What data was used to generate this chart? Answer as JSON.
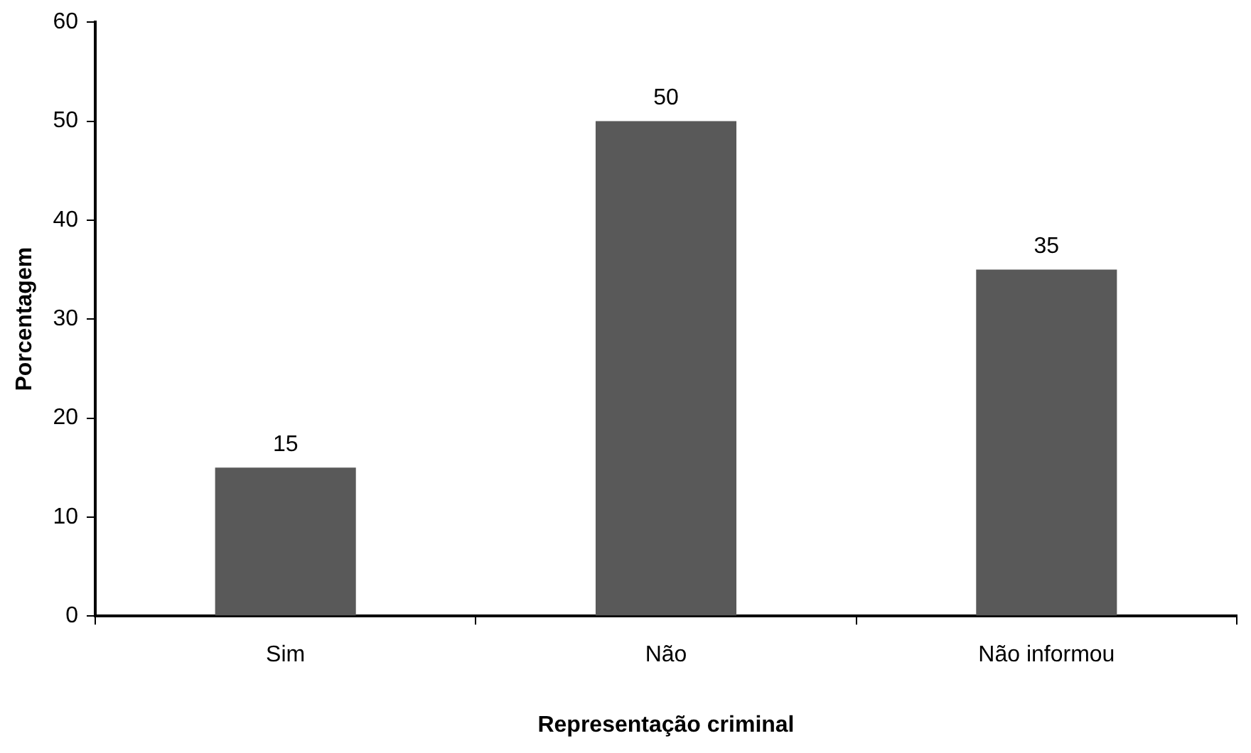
{
  "chart_data": {
    "type": "bar",
    "xlabel": "Representação criminal",
    "ylabel": "Porcentagem",
    "categories": [
      "Sim",
      "Não",
      "Não informou"
    ],
    "values": [
      15,
      50,
      35
    ],
    "color": "#595959",
    "ylim": [
      0,
      60
    ],
    "yticks": [
      0,
      10,
      20,
      30,
      40,
      50,
      60
    ],
    "grid": false,
    "data_labels": true
  }
}
